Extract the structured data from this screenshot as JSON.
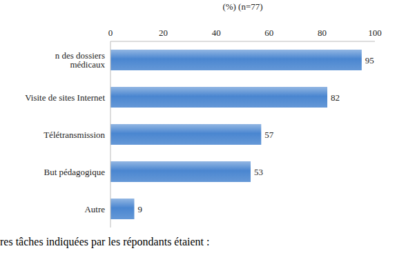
{
  "chart_data": {
    "type": "bar",
    "title": "(%) (n=77)",
    "annotation": "res tâches indiquées par les répondants étaient :",
    "categories": [
      "n des dossiers médicaux",
      "Visite de sites Internet",
      "Télétransmission",
      "But pédagogique",
      "Autre"
    ],
    "values": [
      95,
      82,
      57,
      53,
      9
    ],
    "color": "#4a86d0",
    "orientation": "horizontal",
    "xlim": [
      0,
      100
    ],
    "xticks": [
      0,
      20,
      40,
      60,
      80,
      100
    ],
    "data_labels": true,
    "grid": false
  }
}
